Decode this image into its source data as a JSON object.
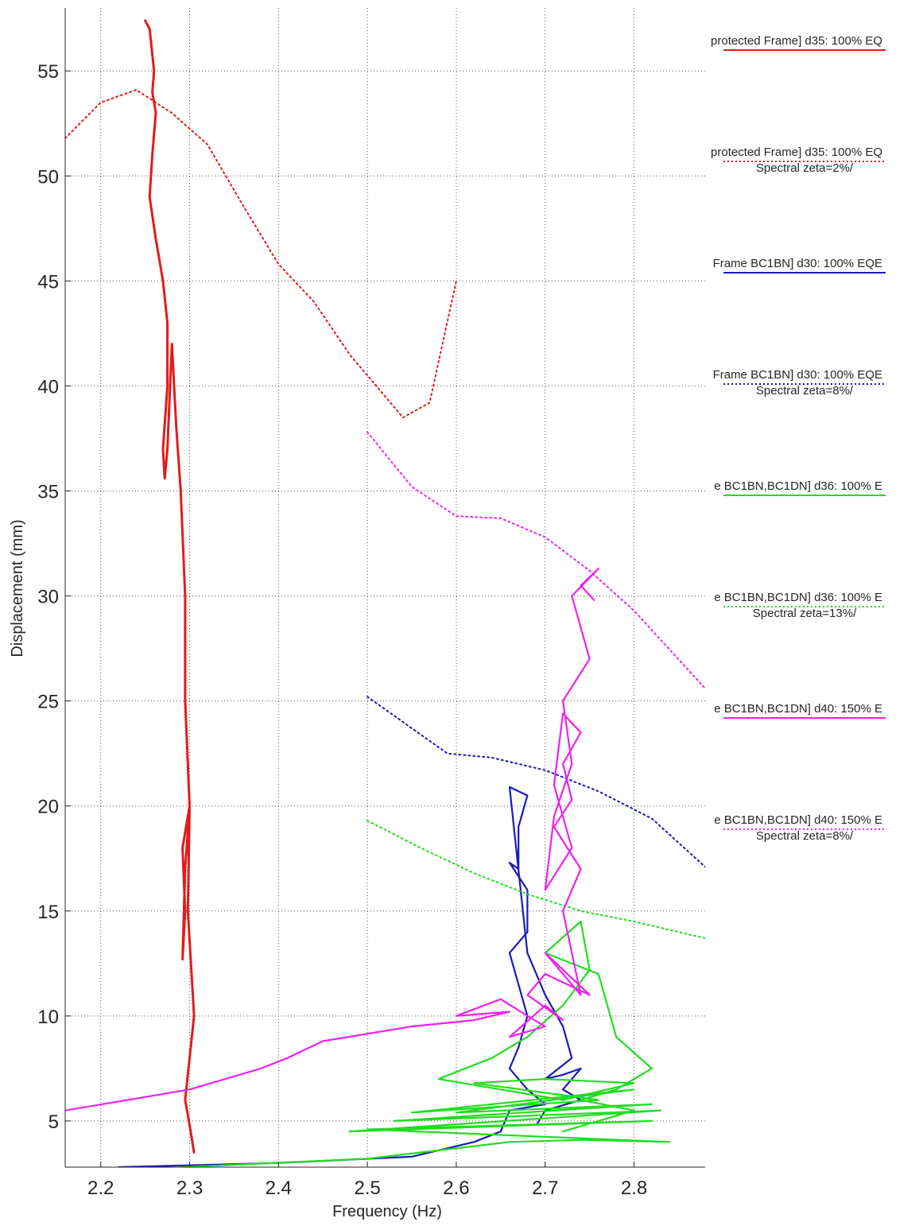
{
  "chart_data": {
    "type": "line",
    "title": "",
    "xlabel": "Frequency (Hz)",
    "ylabel": "Displacement (mm)",
    "xlim": [
      2.16,
      2.88
    ],
    "ylim": [
      2.8,
      58
    ],
    "xticks": [
      "2.2",
      "2.3",
      "2.4",
      "2.5",
      "2.6",
      "2.7",
      "2.8"
    ],
    "yticks": [
      "5",
      "10",
      "15",
      "20",
      "25",
      "30",
      "35",
      "40",
      "45",
      "50",
      "55"
    ],
    "grid": true,
    "legend_position": "outside-right",
    "series": [
      {
        "name": "protected Frame] d35: 100% EQ",
        "color": "#e41a1a",
        "style": "solid",
        "x": [
          2.25,
          2.255,
          2.26,
          2.258,
          2.262,
          2.258,
          2.255,
          2.262,
          2.27,
          2.275,
          2.275,
          2.27,
          2.272,
          2.275,
          2.28,
          2.285,
          2.29,
          2.295,
          2.295,
          2.3,
          2.295,
          2.292,
          2.295,
          2.292,
          2.3,
          2.298,
          2.305,
          2.3,
          2.295,
          2.3,
          2.305
        ],
        "y": [
          57.4,
          57,
          55,
          54,
          53,
          51,
          49,
          47,
          45,
          43,
          40,
          37,
          35.6,
          37,
          42,
          38,
          35,
          30,
          25,
          20,
          17,
          12.7,
          15,
          18,
          20,
          15,
          10,
          8,
          6,
          4.8,
          3.5
        ]
      },
      {
        "name": "protected Frame] d35: 100% EQ Spectral zeta=2%/",
        "color": "#e41a1a",
        "style": "dotted",
        "x": [
          2.16,
          2.2,
          2.24,
          2.28,
          2.32,
          2.36,
          2.4,
          2.44,
          2.48,
          2.51,
          2.54,
          2.57,
          2.6
        ],
        "y": [
          51.8,
          53.5,
          54.1,
          53,
          51.5,
          48.6,
          45.8,
          44,
          41.5,
          40,
          38.5,
          39.2,
          45
        ]
      },
      {
        "name": "Frame BC1BN] d30: 100% EQE",
        "color": "#1a1ab8",
        "style": "solid",
        "x": [
          2.22,
          2.4,
          2.55,
          2.62,
          2.65,
          2.66,
          2.7,
          2.68,
          2.66,
          2.67,
          2.68,
          2.67,
          2.66,
          2.68,
          2.68,
          2.66,
          2.67,
          2.67,
          2.68,
          2.66,
          2.68,
          2.7,
          2.72,
          2.73,
          2.7,
          2.72,
          2.74,
          2.72,
          2.74,
          2.7,
          2.69
        ],
        "y": [
          2.8,
          3.0,
          3.3,
          4.0,
          4.5,
          5.5,
          5.8,
          6.5,
          7.5,
          8.5,
          10,
          11.5,
          13,
          14,
          16,
          17.3,
          17,
          19,
          20.5,
          20.9,
          13,
          11,
          9.5,
          8,
          7,
          7.2,
          7.5,
          6.5,
          6,
          5.5,
          4.8
        ]
      },
      {
        "name": "Frame BC1BN] d30: 100% EQE Spectral zeta=8%/",
        "color": "#1a1ab8",
        "style": "dotted",
        "x": [
          2.5,
          2.55,
          2.59,
          2.64,
          2.7,
          2.76,
          2.82,
          2.88
        ],
        "y": [
          25.2,
          23.7,
          22.5,
          22.3,
          21.7,
          20.7,
          19.4,
          17.1
        ]
      },
      {
        "name": "e BC1BN,BC1DN] d36: 100% E",
        "color": "#22dd22",
        "style": "solid",
        "x": [
          2.29,
          2.5,
          2.58,
          2.66,
          2.74,
          2.84,
          2.5,
          2.82,
          2.48,
          2.83,
          2.53,
          2.82,
          2.6,
          2.8,
          2.55,
          2.76,
          2.62,
          2.7,
          2.8,
          2.72,
          2.65,
          2.58,
          2.64,
          2.68,
          2.72,
          2.75,
          2.74,
          2.7,
          2.76,
          2.78,
          2.82,
          2.78,
          2.74,
          2.8,
          2.76,
          2.72
        ],
        "y": [
          2.8,
          3.2,
          3.6,
          4.0,
          4.1,
          4.0,
          4.6,
          5.0,
          4.5,
          5.5,
          5.0,
          5.8,
          5.4,
          6.5,
          5.4,
          6.0,
          6.8,
          7.0,
          6.8,
          6.0,
          6.5,
          7.0,
          8.0,
          9.0,
          10.5,
          12.2,
          14.5,
          13,
          12,
          9,
          7.5,
          6.5,
          6,
          5.5,
          5.0,
          4.5
        ]
      },
      {
        "name": "e BC1BN,BC1DN] d36: 100% E Spectral zeta=13%/",
        "color": "#22dd22",
        "style": "dotted",
        "x": [
          2.5,
          2.56,
          2.62,
          2.68,
          2.74,
          2.8,
          2.88
        ],
        "y": [
          19.3,
          18.0,
          16.8,
          15.8,
          15.0,
          14.5,
          13.7
        ]
      },
      {
        "name": "e BC1BN,BC1DN] d40: 150% E",
        "color": "#ee22ee",
        "style": "solid",
        "x": [
          2.16,
          2.3,
          2.38,
          2.41,
          2.45,
          2.55,
          2.62,
          2.66,
          2.6,
          2.65,
          2.68,
          2.7,
          2.66,
          2.7,
          2.72,
          2.68,
          2.7,
          2.75,
          2.7,
          2.74,
          2.72,
          2.74,
          2.71,
          2.73,
          2.72,
          2.74,
          2.72,
          2.71,
          2.73,
          2.7,
          2.71,
          2.73,
          2.72,
          2.75,
          2.73,
          2.76,
          2.74,
          2.755
        ],
        "y": [
          5.5,
          6.5,
          7.5,
          8.0,
          8.8,
          9.5,
          9.8,
          10.2,
          10.0,
          10.8,
          10.0,
          9.5,
          9.0,
          10.5,
          9.8,
          11.0,
          12.0,
          11.0,
          13.0,
          11.0,
          15.0,
          17.0,
          19.0,
          20.3,
          22.0,
          23.5,
          24.4,
          21.0,
          18.0,
          16.0,
          19.5,
          22.0,
          25.0,
          27.0,
          30.0,
          31.3,
          30.5,
          29.8
        ]
      },
      {
        "name": "e BC1BN,BC1DN] d40: 150% E Spectral zeta=8%/",
        "color": "#ee22ee",
        "style": "dotted",
        "x": [
          2.5,
          2.55,
          2.6,
          2.65,
          2.7,
          2.75,
          2.8,
          2.88
        ],
        "y": [
          37.8,
          35.2,
          33.8,
          33.7,
          32.8,
          31.2,
          29.3,
          25.6
        ]
      }
    ],
    "legend": [
      {
        "line1": "protected Frame] d35: 100% EQ",
        "line2": "",
        "color": "#e41a1a",
        "style": "solid"
      },
      {
        "line1": "protected Frame] d35: 100% EQ",
        "line2": "Spectral  zeta=2%/",
        "color": "#e41a1a",
        "style": "dotted"
      },
      {
        "line1": "Frame BC1BN] d30: 100% EQE",
        "line2": "",
        "color": "#1a1ab8",
        "style": "solid"
      },
      {
        "line1": "Frame BC1BN] d30: 100% EQE",
        "line2": "Spectral  zeta=8%/",
        "color": "#1a1ab8",
        "style": "dotted"
      },
      {
        "line1": "e BC1BN,BC1DN] d36: 100% E",
        "line2": "",
        "color": "#22dd22",
        "style": "solid"
      },
      {
        "line1": "e BC1BN,BC1DN] d36: 100% E",
        "line2": "Spectral  zeta=13%/",
        "color": "#22dd22",
        "style": "dotted"
      },
      {
        "line1": "e BC1BN,BC1DN] d40: 150% E",
        "line2": "",
        "color": "#ee22ee",
        "style": "solid"
      },
      {
        "line1": "e BC1BN,BC1DN] d40: 150% E",
        "line2": "Spectral  zeta=8%/",
        "color": "#ee22ee",
        "style": "dotted"
      }
    ]
  }
}
